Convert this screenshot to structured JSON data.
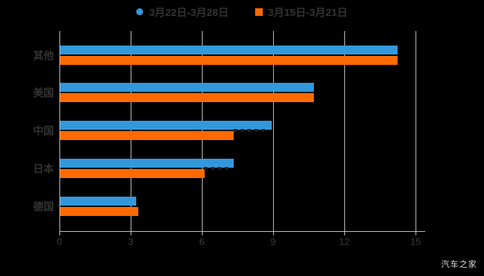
{
  "page": {
    "background": "#000000",
    "watermark": "汽车之家"
  },
  "legend": {
    "position": "top-center",
    "text_color": "#333333",
    "items": [
      {
        "label": "3月22日-3月28日",
        "color": "#3398db",
        "marker": "circle"
      },
      {
        "label": "3月15日-3月21日",
        "color": "#ff6a00",
        "marker": "square"
      }
    ]
  },
  "chart_data": {
    "type": "bar",
    "orientation": "horizontal",
    "title": "",
    "xlabel": "",
    "ylabel": "",
    "categories": [
      "其他",
      "美国",
      "中国",
      "日本",
      "德国"
    ],
    "series": [
      {
        "name": "3月22日-3月28日",
        "color": "#3398db",
        "values": [
          14.2,
          10.7,
          8.9,
          7.3,
          3.2
        ]
      },
      {
        "name": "3月15日-3月21日",
        "color": "#ff6a00",
        "values": [
          14.2,
          10.7,
          7.3,
          6.1,
          3.3
        ]
      }
    ],
    "xlim": [
      0,
      15
    ],
    "xticks": [
      "0",
      "3",
      "6",
      "9",
      "12",
      "15"
    ],
    "grid": true,
    "grid_color": "#c8c8c8",
    "axis_text_color": "#333333",
    "legend_position": "top"
  }
}
